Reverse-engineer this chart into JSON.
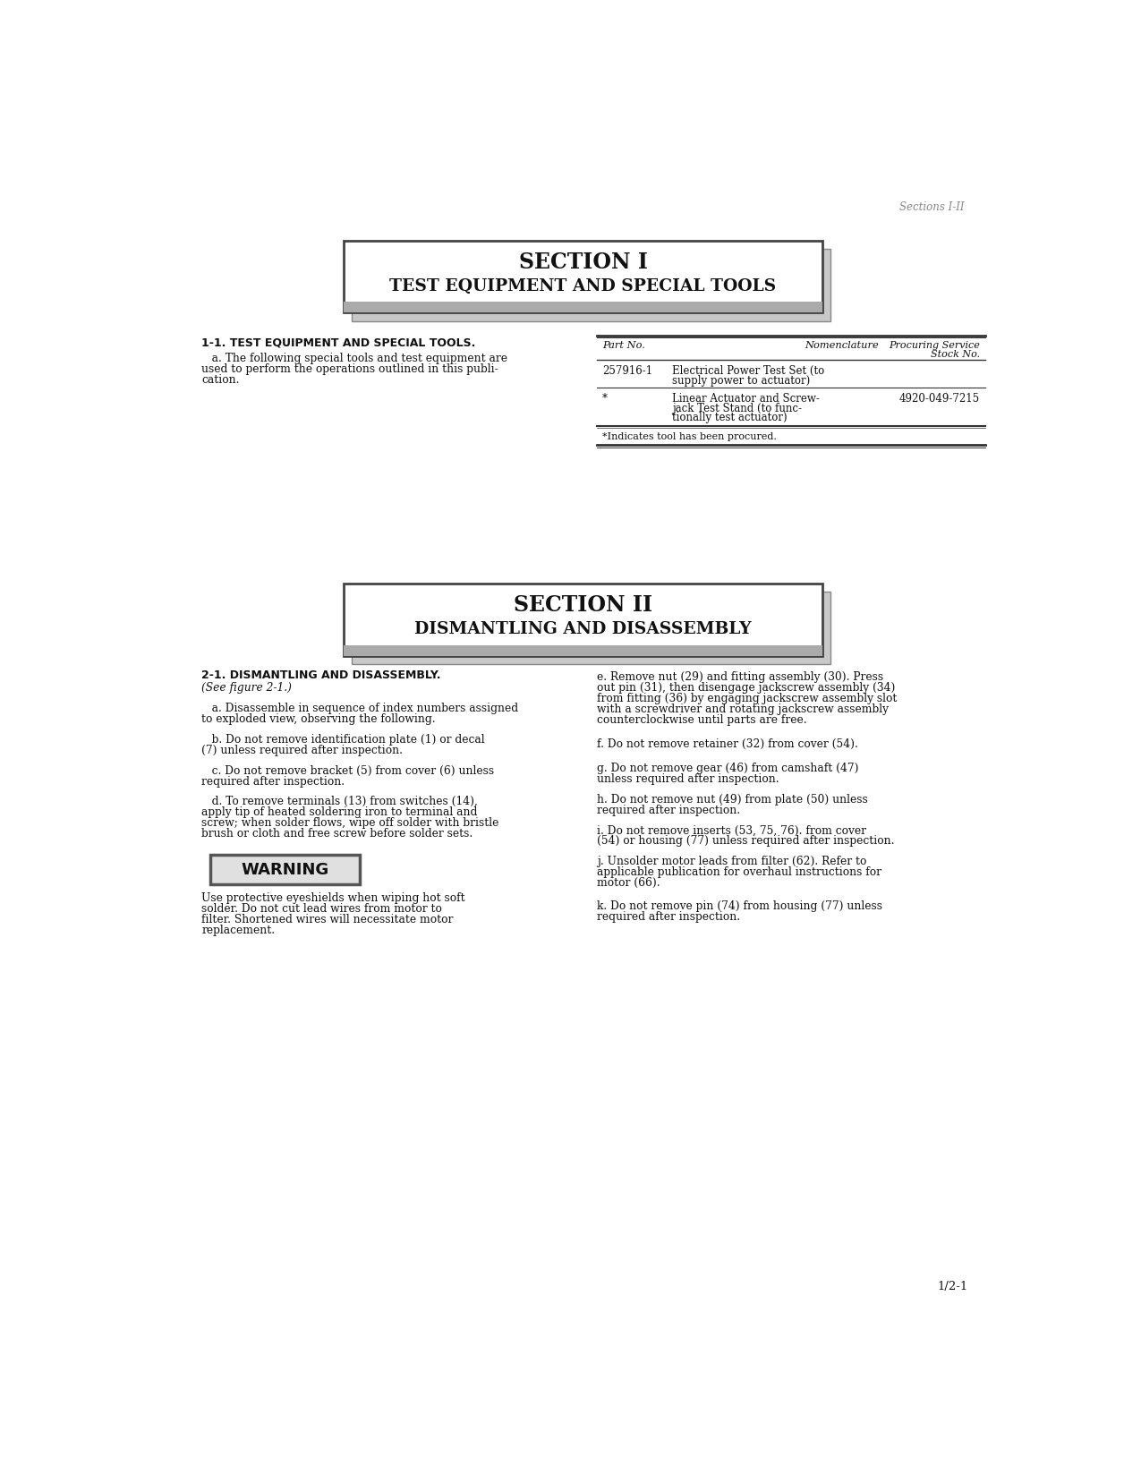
{
  "page_header": "Sections I-II",
  "section1_title_line1": "SECTION I",
  "section1_title_line2": "TEST EQUIPMENT AND SPECIAL TOOLS",
  "section1_heading": "1-1. TEST EQUIPMENT AND SPECIAL TOOLS.",
  "section1_para_a_lines": [
    "   a. The following special tools and test equipment are",
    "used to perform the operations outlined in this publi-",
    "cation."
  ],
  "table_col1": "Part No.",
  "table_col2": "Nomenclature",
  "table_col3_line1": "Procuring Service",
  "table_col3_line2": "Stock No.",
  "table_row1_col1": "257916-1",
  "table_row1_col2_lines": [
    "Electrical Power Test Set (to",
    "supply power to actuator)"
  ],
  "table_row1_col3": "",
  "table_row2_col1": "*",
  "table_row2_col2_lines": [
    "Linear Actuator and Screw-",
    "jack Test Stand (to func-",
    "tionally test actuator)"
  ],
  "table_row2_col3": "4920-049-7215",
  "table_footnote": "*Indicates tool has been procured.",
  "section2_title_line1": "SECTION II",
  "section2_title_line2": "DISMANTLING AND DISASSEMBLY",
  "section2_heading": "2-1. DISMANTLING AND DISASSEMBLY.",
  "section2_see": "(See figure 2-1.)",
  "section2_para_a_lines": [
    "   a. Disassemble in sequence of index numbers assigned",
    "to exploded view, observing the following."
  ],
  "section2_para_b_lines": [
    "   b. Do not remove identification plate (1) or decal",
    "(7) unless required after inspection."
  ],
  "section2_para_c_lines": [
    "   c. Do not remove bracket (5) from cover (6) unless",
    "required after inspection."
  ],
  "section2_para_d_lines": [
    "   d. To remove terminals (13) from switches (14),",
    "apply tip of heated soldering iron to terminal and",
    "screw; when solder flows, wipe off solder with bristle",
    "brush or cloth and free screw before solder sets."
  ],
  "warning_text": "WARNING",
  "warning_para_lines": [
    "Use protective eyeshields when wiping hot soft",
    "solder. Do not cut lead wires from motor to",
    "filter. Shortened wires will necessitate motor",
    "replacement."
  ],
  "section2_para_e_lines": [
    "e. Remove nut (29) and fitting assembly (30). Press",
    "out pin (31), then disengage jackscrew assembly (34)",
    "from fitting (36) by engaging jackscrew assembly slot",
    "with a screwdriver and rotating jackscrew assembly",
    "counterclockwise until parts are free."
  ],
  "section2_para_f": "f. Do not remove retainer (32) from cover (54).",
  "section2_para_g_lines": [
    "g. Do not remove gear (46) from camshaft (47)",
    "unless required after inspection."
  ],
  "section2_para_h_lines": [
    "h. Do not remove nut (49) from plate (50) unless",
    "required after inspection."
  ],
  "section2_para_i_lines": [
    "i. Do not remove inserts (53, 75, 76). from cover",
    "(54) or housing (77) unless required after inspection."
  ],
  "section2_para_j_lines": [
    "j. Unsolder motor leads from filter (62). Refer to",
    "applicable publication for overhaul instructions for",
    "motor (66)."
  ],
  "section2_para_k_lines": [
    "k. Do not remove pin (74) from housing (77) unless",
    "required after inspection."
  ],
  "page_footer": "1/2-1",
  "bg_color": "#ffffff",
  "text_color": "#111111",
  "gray_light": "#c8c8c8",
  "gray_dark": "#888888",
  "gray_band": "#aaaaaa",
  "border_color": "#444444",
  "line_color": "#333333"
}
